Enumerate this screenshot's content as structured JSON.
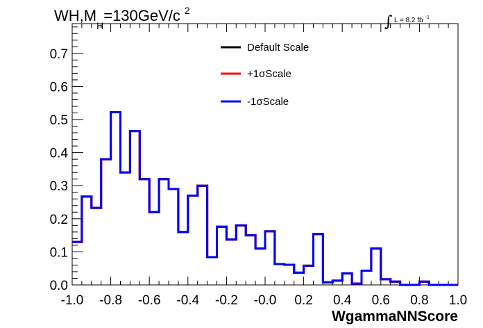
{
  "chart_data": {
    "type": "line",
    "title": {
      "prefix": "WH,M",
      "subscript": "H",
      "suffix": "=130GeV/c",
      "superscript": "2"
    },
    "lumi": {
      "integral_symbol": "∫",
      "text": "L = 8.2 fb",
      "superscript": "-1"
    },
    "xlabel": "WgammaNNScore",
    "ylabel": "",
    "xlim": [
      -1.0,
      1.0
    ],
    "ylim": [
      0,
      0.79
    ],
    "x_ticks": [
      "-1.0",
      "-0.8",
      "-0.6",
      "-0.4",
      "-0.2",
      "-0.0",
      "0.2",
      "0.4",
      "0.6",
      "0.8",
      "1.0"
    ],
    "y_ticks": [
      "0.0",
      "0.1",
      "0.2",
      "0.3",
      "0.4",
      "0.5",
      "0.6",
      "0.7"
    ],
    "bin_edges": [
      -1.0,
      -0.95,
      -0.9,
      -0.85,
      -0.8,
      -0.75,
      -0.7,
      -0.65,
      -0.6,
      -0.55,
      -0.5,
      -0.45,
      -0.4,
      -0.35,
      -0.3,
      -0.25,
      -0.2,
      -0.15,
      -0.1,
      -0.05,
      0.0,
      0.05,
      0.1,
      0.15,
      0.2,
      0.25,
      0.3,
      0.35,
      0.4,
      0.45,
      0.5,
      0.55,
      0.6,
      0.65,
      0.7,
      0.75,
      0.8,
      0.85,
      0.9,
      0.95,
      1.0
    ],
    "series": [
      {
        "name": "Default Scale",
        "color": "#000000",
        "values": [
          0.13,
          0.267,
          0.233,
          0.38,
          0.522,
          0.34,
          0.465,
          0.32,
          0.22,
          0.32,
          0.29,
          0.16,
          0.27,
          0.3,
          0.084,
          0.176,
          0.137,
          0.18,
          0.15,
          0.11,
          0.162,
          0.063,
          0.061,
          0.037,
          0.058,
          0.154,
          0.008,
          0.013,
          0.035,
          0.004,
          0.043,
          0.11,
          0.017,
          0.01,
          0.0,
          0.0,
          0.01,
          0.0,
          0.0,
          0.0
        ]
      },
      {
        "name": "+1σScale",
        "color": "#ff0000",
        "values": [
          0.13,
          0.267,
          0.233,
          0.38,
          0.522,
          0.34,
          0.465,
          0.32,
          0.22,
          0.32,
          0.29,
          0.16,
          0.27,
          0.3,
          0.084,
          0.176,
          0.137,
          0.18,
          0.15,
          0.11,
          0.162,
          0.063,
          0.061,
          0.037,
          0.058,
          0.154,
          0.008,
          0.013,
          0.035,
          0.004,
          0.043,
          0.11,
          0.017,
          0.01,
          0.0,
          0.0,
          0.01,
          0.0,
          0.0,
          0.0
        ]
      },
      {
        "name": "-1σScale",
        "color": "#0000ff",
        "values": [
          0.13,
          0.267,
          0.233,
          0.38,
          0.522,
          0.34,
          0.465,
          0.32,
          0.22,
          0.32,
          0.29,
          0.16,
          0.27,
          0.3,
          0.084,
          0.176,
          0.137,
          0.18,
          0.15,
          0.11,
          0.162,
          0.063,
          0.061,
          0.037,
          0.058,
          0.154,
          0.008,
          0.013,
          0.035,
          0.004,
          0.043,
          0.11,
          0.017,
          0.01,
          0.0,
          0.0,
          0.01,
          0.0,
          0.0,
          0.0
        ]
      }
    ],
    "legend_position": "top-center",
    "grid": false
  }
}
